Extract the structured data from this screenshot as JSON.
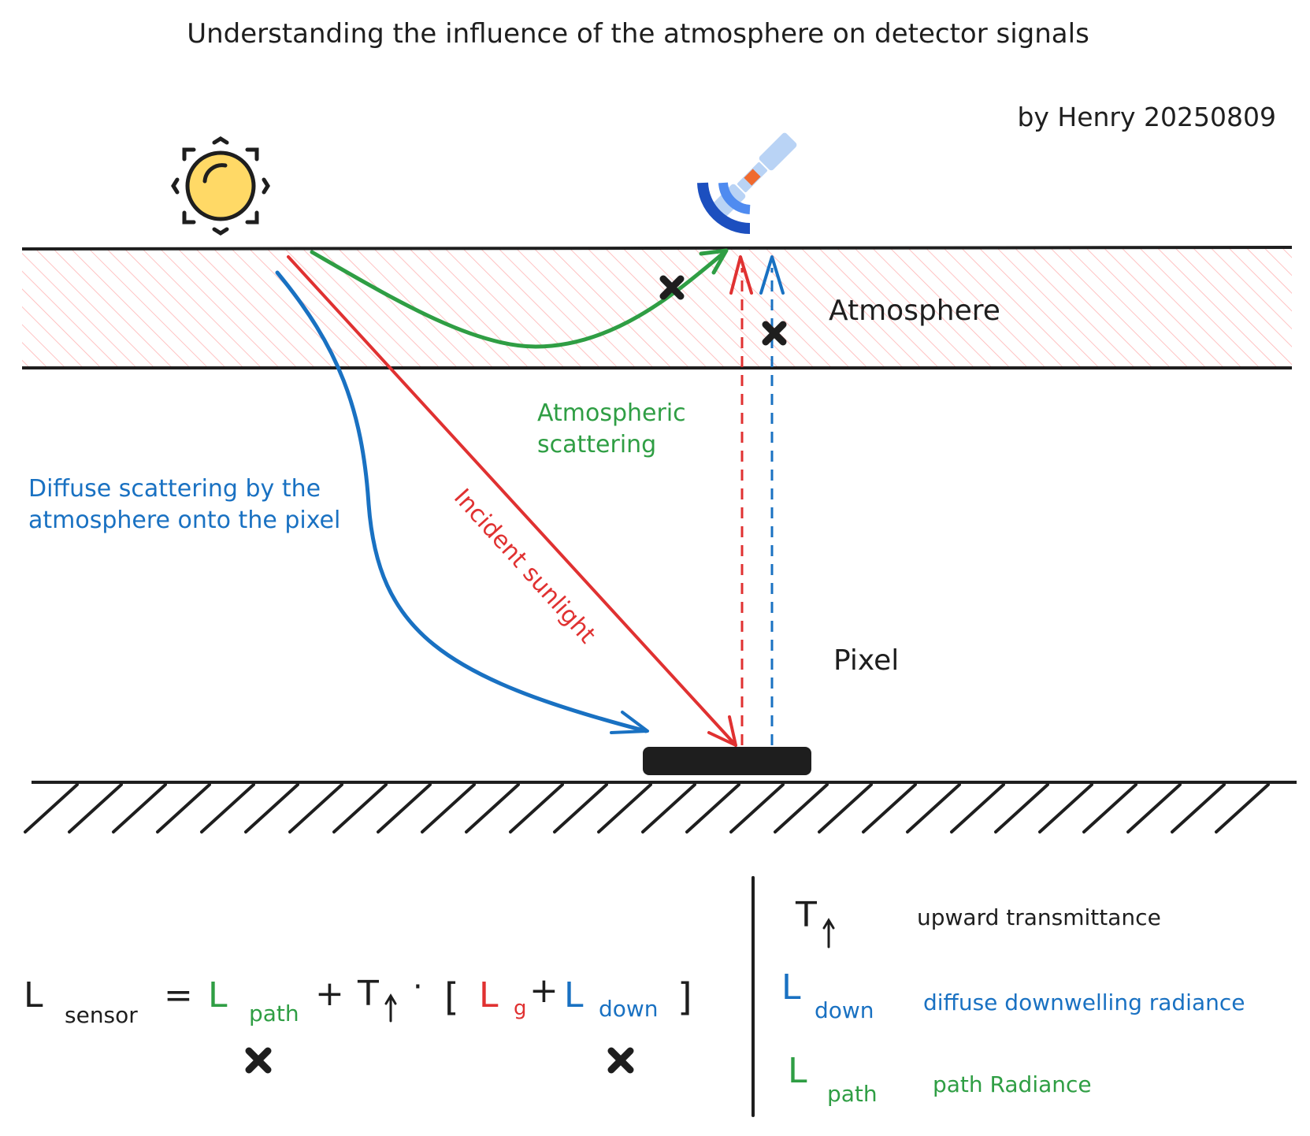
{
  "title": "Understanding the influence of the atmosphere on detector signals",
  "author": "by Henry 20250809",
  "labels": {
    "atmosphere": "Atmosphere",
    "atmospheric_scattering_line1": "Atmospheric",
    "atmospheric_scattering_line2": "scattering",
    "diffuse_line1": "Diffuse scattering by the",
    "diffuse_line2": "atmosphere onto the pixel",
    "incident_sunlight": "Incident sunlight",
    "pixel": "Pixel"
  },
  "equation": {
    "L": "L",
    "sensor": "sensor",
    "equals": "=",
    "path": "path",
    "plus": "+",
    "T": "T",
    "dot": "·",
    "open_bracket": "[",
    "g": "g",
    "down": "down",
    "close_bracket": "]"
  },
  "legend": [
    {
      "symbol": "T",
      "subscript": "",
      "text": "upward transmittance",
      "color": "#1e1e1e"
    },
    {
      "symbol": "L",
      "subscript": "down",
      "text": "diffuse downwelling radiance",
      "color": "#1971c2"
    },
    {
      "symbol": "L",
      "subscript": "path",
      "text": "path Radiance",
      "color": "#2f9e44"
    }
  ],
  "colors": {
    "red": "#e03131",
    "green": "#2f9e44",
    "blue": "#1971c2",
    "ink": "#1e1e1e",
    "hatch": "#ffc9c9",
    "sun": "#ffd966"
  },
  "icons": [
    "sun-icon",
    "satellite-icon"
  ]
}
